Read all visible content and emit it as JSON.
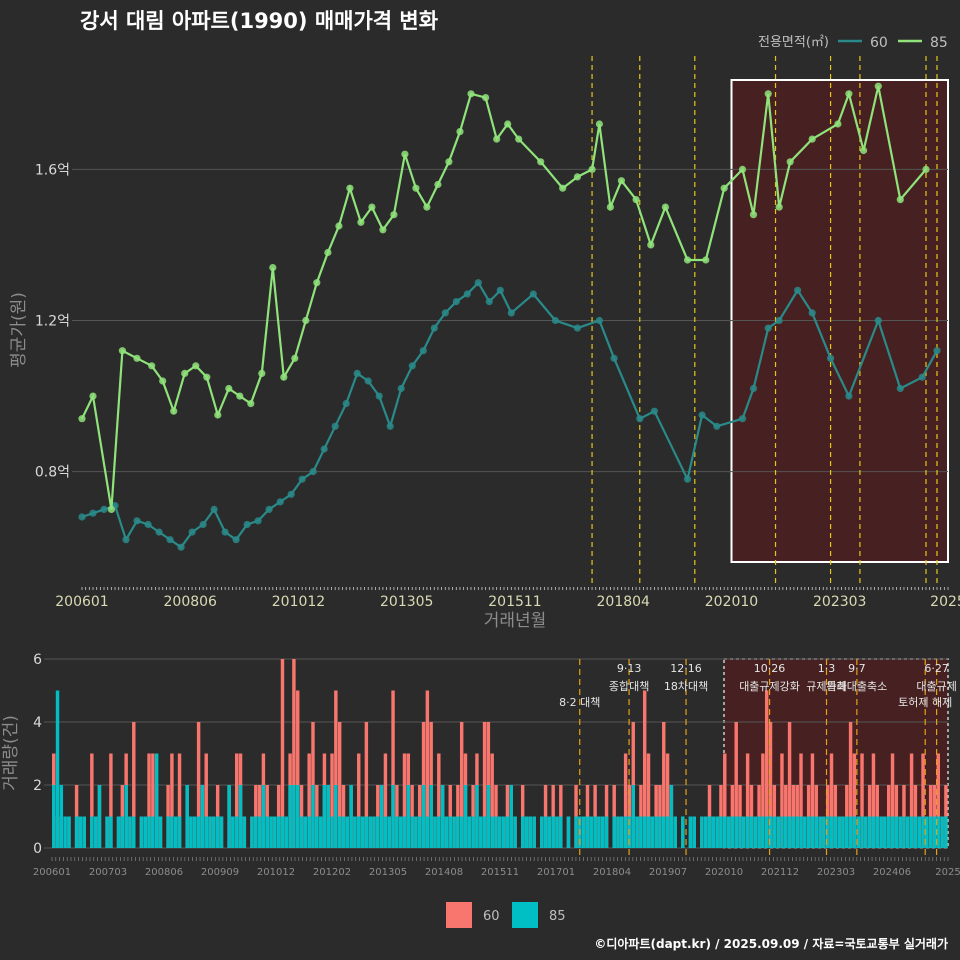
{
  "title": "강서 대림 아파트(1990) 매매가격 변화",
  "credit": "©디아파트(dapt.kr) / 2025.09.09 / 자료=국토교통부 실거래가",
  "colors": {
    "line60": "#2a8a8a",
    "line85": "#8fe37a",
    "bar60": "#f8766d",
    "bar85": "#00bfc4",
    "vline": "#e6c619",
    "highlight_fill": "#5a1a1a",
    "background": "#2b2b2b",
    "grid": "#555555"
  },
  "chart_data": [
    {
      "type": "line",
      "name": "price",
      "ylabel": "평균가(원)",
      "xlabel": "거래년월",
      "ylim": [
        0.5,
        1.9
      ],
      "ytick_values": [
        0.8,
        1.2,
        1.6
      ],
      "ytick_labels": [
        "0.8억",
        "1.2억",
        "1.6억"
      ],
      "xtick_labels": [
        "200601",
        "200806",
        "201012",
        "201305",
        "201511",
        "201804",
        "202010",
        "202303",
        "2025"
      ],
      "xlim": [
        "2006-01",
        "2025-09"
      ],
      "legend_title": "전용면적(㎡)",
      "legend_position": "top-right",
      "highlight_range": [
        "2020-10",
        "2025-09"
      ],
      "policy_dates": [
        "2017-08",
        "2018-09",
        "2019-12",
        "2021-10",
        "2023-01",
        "2023-09",
        "2025-03",
        "2025-06"
      ],
      "series": [
        {
          "name": "60",
          "points": [
            [
              "2006-01",
              0.68
            ],
            [
              "2006-04",
              0.69
            ],
            [
              "2006-07",
              0.7
            ],
            [
              "2006-10",
              0.71
            ],
            [
              "2007-01",
              0.62
            ],
            [
              "2007-04",
              0.67
            ],
            [
              "2007-07",
              0.66
            ],
            [
              "2007-10",
              0.64
            ],
            [
              "2008-01",
              0.62
            ],
            [
              "2008-04",
              0.6
            ],
            [
              "2008-07",
              0.64
            ],
            [
              "2008-10",
              0.66
            ],
            [
              "2009-01",
              0.7
            ],
            [
              "2009-04",
              0.64
            ],
            [
              "2009-07",
              0.62
            ],
            [
              "2009-10",
              0.66
            ],
            [
              "2010-01",
              0.67
            ],
            [
              "2010-04",
              0.7
            ],
            [
              "2010-07",
              0.72
            ],
            [
              "2010-10",
              0.74
            ],
            [
              "2011-01",
              0.78
            ],
            [
              "2011-04",
              0.8
            ],
            [
              "2011-07",
              0.86
            ],
            [
              "2011-10",
              0.92
            ],
            [
              "2012-01",
              0.98
            ],
            [
              "2012-04",
              1.06
            ],
            [
              "2012-07",
              1.04
            ],
            [
              "2012-10",
              1.0
            ],
            [
              "2013-01",
              0.92
            ],
            [
              "2013-04",
              1.02
            ],
            [
              "2013-07",
              1.08
            ],
            [
              "2013-10",
              1.12
            ],
            [
              "2014-01",
              1.18
            ],
            [
              "2014-04",
              1.22
            ],
            [
              "2014-07",
              1.25
            ],
            [
              "2014-10",
              1.27
            ],
            [
              "2015-01",
              1.3
            ],
            [
              "2015-04",
              1.25
            ],
            [
              "2015-07",
              1.28
            ],
            [
              "2015-10",
              1.22
            ],
            [
              "2016-04",
              1.27
            ],
            [
              "2016-10",
              1.2
            ],
            [
              "2017-04",
              1.18
            ],
            [
              "2017-10",
              1.2
            ],
            [
              "2018-02",
              1.1
            ],
            [
              "2018-09",
              0.94
            ],
            [
              "2019-01",
              0.96
            ],
            [
              "2019-10",
              0.78
            ],
            [
              "2020-02",
              0.95
            ],
            [
              "2020-06",
              0.92
            ],
            [
              "2021-01",
              0.94
            ],
            [
              "2021-04",
              1.02
            ],
            [
              "2021-08",
              1.18
            ],
            [
              "2021-11",
              1.2
            ],
            [
              "2022-04",
              1.28
            ],
            [
              "2022-08",
              1.22
            ],
            [
              "2023-01",
              1.1
            ],
            [
              "2023-06",
              1.0
            ],
            [
              "2024-02",
              1.2
            ],
            [
              "2024-08",
              1.02
            ],
            [
              "2025-02",
              1.05
            ],
            [
              "2025-06",
              1.12
            ]
          ]
        },
        {
          "name": "85",
          "points": [
            [
              "2006-01",
              0.94
            ],
            [
              "2006-04",
              1.0
            ],
            [
              "2006-09",
              0.7
            ],
            [
              "2006-12",
              1.12
            ],
            [
              "2007-04",
              1.1
            ],
            [
              "2007-08",
              1.08
            ],
            [
              "2007-11",
              1.04
            ],
            [
              "2008-02",
              0.96
            ],
            [
              "2008-05",
              1.06
            ],
            [
              "2008-08",
              1.08
            ],
            [
              "2008-11",
              1.05
            ],
            [
              "2009-02",
              0.95
            ],
            [
              "2009-05",
              1.02
            ],
            [
              "2009-08",
              1.0
            ],
            [
              "2009-11",
              0.98
            ],
            [
              "2010-02",
              1.06
            ],
            [
              "2010-05",
              1.34
            ],
            [
              "2010-08",
              1.05
            ],
            [
              "2010-11",
              1.1
            ],
            [
              "2011-02",
              1.2
            ],
            [
              "2011-05",
              1.3
            ],
            [
              "2011-08",
              1.38
            ],
            [
              "2011-11",
              1.45
            ],
            [
              "2012-02",
              1.55
            ],
            [
              "2012-05",
              1.46
            ],
            [
              "2012-08",
              1.5
            ],
            [
              "2012-11",
              1.44
            ],
            [
              "2013-02",
              1.48
            ],
            [
              "2013-05",
              1.64
            ],
            [
              "2013-08",
              1.55
            ],
            [
              "2013-11",
              1.5
            ],
            [
              "2014-02",
              1.56
            ],
            [
              "2014-05",
              1.62
            ],
            [
              "2014-08",
              1.7
            ],
            [
              "2014-11",
              1.8
            ],
            [
              "2015-03",
              1.79
            ],
            [
              "2015-06",
              1.68
            ],
            [
              "2015-09",
              1.72
            ],
            [
              "2015-12",
              1.68
            ],
            [
              "2016-06",
              1.62
            ],
            [
              "2016-12",
              1.55
            ],
            [
              "2017-04",
              1.58
            ],
            [
              "2017-08",
              1.6
            ],
            [
              "2017-10",
              1.72
            ],
            [
              "2018-01",
              1.5
            ],
            [
              "2018-04",
              1.57
            ],
            [
              "2018-08",
              1.52
            ],
            [
              "2018-12",
              1.4
            ],
            [
              "2019-04",
              1.5
            ],
            [
              "2019-10",
              1.36
            ],
            [
              "2020-03",
              1.36
            ],
            [
              "2020-08",
              1.55
            ],
            [
              "2021-01",
              1.6
            ],
            [
              "2021-04",
              1.48
            ],
            [
              "2021-08",
              1.8
            ],
            [
              "2021-11",
              1.5
            ],
            [
              "2022-02",
              1.62
            ],
            [
              "2022-08",
              1.68
            ],
            [
              "2023-03",
              1.72
            ],
            [
              "2023-06",
              1.8
            ],
            [
              "2023-10",
              1.65
            ],
            [
              "2024-02",
              1.82
            ],
            [
              "2024-08",
              1.52
            ],
            [
              "2025-03",
              1.6
            ]
          ]
        }
      ]
    },
    {
      "type": "bar",
      "name": "volume",
      "ylabel": "거래량(건)",
      "ylim": [
        0,
        6
      ],
      "ytick_labels": [
        "0",
        "2",
        "4",
        "6"
      ],
      "xtick_labels": [
        "200601",
        "200703",
        "200806",
        "200909",
        "201012",
        "201202",
        "201305",
        "201408",
        "201511",
        "201701",
        "201804",
        "201907",
        "202010",
        "202112",
        "202303",
        "202406",
        "2025"
      ],
      "legend_position": "bottom",
      "annotations": [
        {
          "date": "2017-08",
          "line1": "",
          "line2": "8·2 대책"
        },
        {
          "date": "2018-09",
          "line1": "9·13",
          "line2": "종합대책"
        },
        {
          "date": "2019-12",
          "line1": "12·16",
          "line2": "18차대책"
        },
        {
          "date": "2021-10",
          "line1": "10·26",
          "line2": "대출규제강화"
        },
        {
          "date": "2023-01",
          "line1": "1·3",
          "line2": "규제완화"
        },
        {
          "date": "2023-09",
          "line1": "9·7",
          "line2": "특례대출축소"
        },
        {
          "date": "2025-03",
          "line1": "",
          "line2": "토허제 해제"
        },
        {
          "date": "2025-06",
          "line1": "6·27",
          "line2": "대출규제"
        }
      ],
      "series": [
        {
          "name": "60",
          "values": [
            3,
            1,
            1,
            0,
            1,
            0,
            2,
            1,
            1,
            0,
            3,
            1,
            2,
            0,
            1,
            3,
            0,
            1,
            2,
            3,
            1,
            4,
            0,
            1,
            1,
            3,
            3,
            2,
            1,
            0,
            2,
            3,
            1,
            3,
            0,
            2,
            1,
            1,
            4,
            2,
            3,
            1,
            1,
            2,
            1,
            0,
            2,
            1,
            3,
            3,
            1,
            0,
            1,
            2,
            2,
            3,
            2,
            1,
            1,
            2,
            6,
            1,
            3,
            6,
            5,
            2,
            1,
            3,
            4,
            2,
            1,
            3,
            2,
            3,
            5,
            4,
            2,
            1,
            2,
            1,
            3,
            1,
            4,
            1,
            1,
            2,
            2,
            3,
            1,
            5,
            2,
            1,
            3,
            3,
            2,
            1,
            2,
            4,
            5,
            4,
            1,
            3,
            2,
            1,
            2,
            1,
            2,
            4,
            3,
            1,
            2,
            3,
            1,
            4,
            4,
            3,
            2,
            1,
            1,
            2,
            2,
            1,
            0,
            2,
            1,
            1,
            1,
            0,
            1,
            2,
            1,
            2,
            1,
            2,
            0,
            1,
            0,
            2,
            1,
            1,
            2,
            1,
            2,
            1,
            1,
            2,
            0,
            2,
            1,
            1,
            3,
            2,
            4,
            1,
            2,
            5,
            3,
            1,
            2,
            2,
            4,
            3,
            2,
            1,
            0,
            1,
            0,
            1,
            1,
            0,
            1,
            1,
            2,
            1,
            1,
            2,
            3,
            1,
            2,
            4,
            2,
            1,
            3,
            2,
            1,
            2,
            3,
            5,
            4,
            2,
            1,
            3,
            2,
            4,
            2,
            2,
            3,
            1,
            2,
            3,
            2,
            1,
            1,
            2,
            3,
            2,
            1,
            1,
            2,
            4,
            3,
            1,
            3,
            1,
            2,
            3,
            2,
            1,
            1,
            2,
            3,
            2,
            1,
            2,
            1,
            3,
            2,
            1,
            3,
            1,
            2,
            2,
            3,
            1,
            2
          ]
        },
        {
          "name": "85",
          "values": [
            2,
            5,
            2,
            1,
            1,
            0,
            1,
            1,
            1,
            0,
            1,
            1,
            2,
            0,
            1,
            1,
            0,
            1,
            1,
            2,
            1,
            1,
            0,
            1,
            1,
            1,
            1,
            3,
            1,
            0,
            1,
            1,
            1,
            1,
            0,
            2,
            1,
            1,
            1,
            2,
            1,
            1,
            1,
            1,
            1,
            0,
            2,
            1,
            1,
            2,
            1,
            0,
            1,
            1,
            1,
            2,
            1,
            1,
            1,
            1,
            1,
            1,
            2,
            2,
            2,
            1,
            1,
            1,
            2,
            1,
            1,
            2,
            2,
            1,
            2,
            1,
            1,
            1,
            2,
            1,
            1,
            1,
            1,
            1,
            1,
            1,
            2,
            1,
            1,
            2,
            1,
            1,
            1,
            2,
            1,
            1,
            1,
            2,
            1,
            2,
            1,
            1,
            2,
            1,
            1,
            1,
            1,
            1,
            2,
            1,
            1,
            2,
            1,
            1,
            2,
            1,
            1,
            1,
            1,
            1,
            2,
            1,
            0,
            1,
            1,
            1,
            1,
            0,
            1,
            1,
            1,
            1,
            1,
            1,
            0,
            1,
            0,
            1,
            1,
            1,
            1,
            1,
            1,
            1,
            1,
            1,
            0,
            1,
            1,
            1,
            1,
            1,
            2,
            1,
            1,
            1,
            1,
            1,
            1,
            1,
            1,
            1,
            2,
            1,
            0,
            1,
            0,
            1,
            1,
            0,
            1,
            1,
            1,
            1,
            1,
            1,
            1,
            1,
            1,
            1,
            1,
            1,
            1,
            1,
            1,
            1,
            1,
            1,
            1,
            1,
            1,
            1,
            1,
            1,
            1,
            1,
            1,
            1,
            1,
            1,
            1,
            1,
            1,
            1,
            1,
            1,
            1,
            1,
            1,
            1,
            1,
            1,
            1,
            1,
            1,
            1,
            1,
            1,
            1,
            1,
            1,
            1,
            1,
            1,
            1,
            1,
            1,
            1,
            1,
            1,
            1,
            1,
            1,
            1,
            1
          ]
        }
      ]
    }
  ]
}
